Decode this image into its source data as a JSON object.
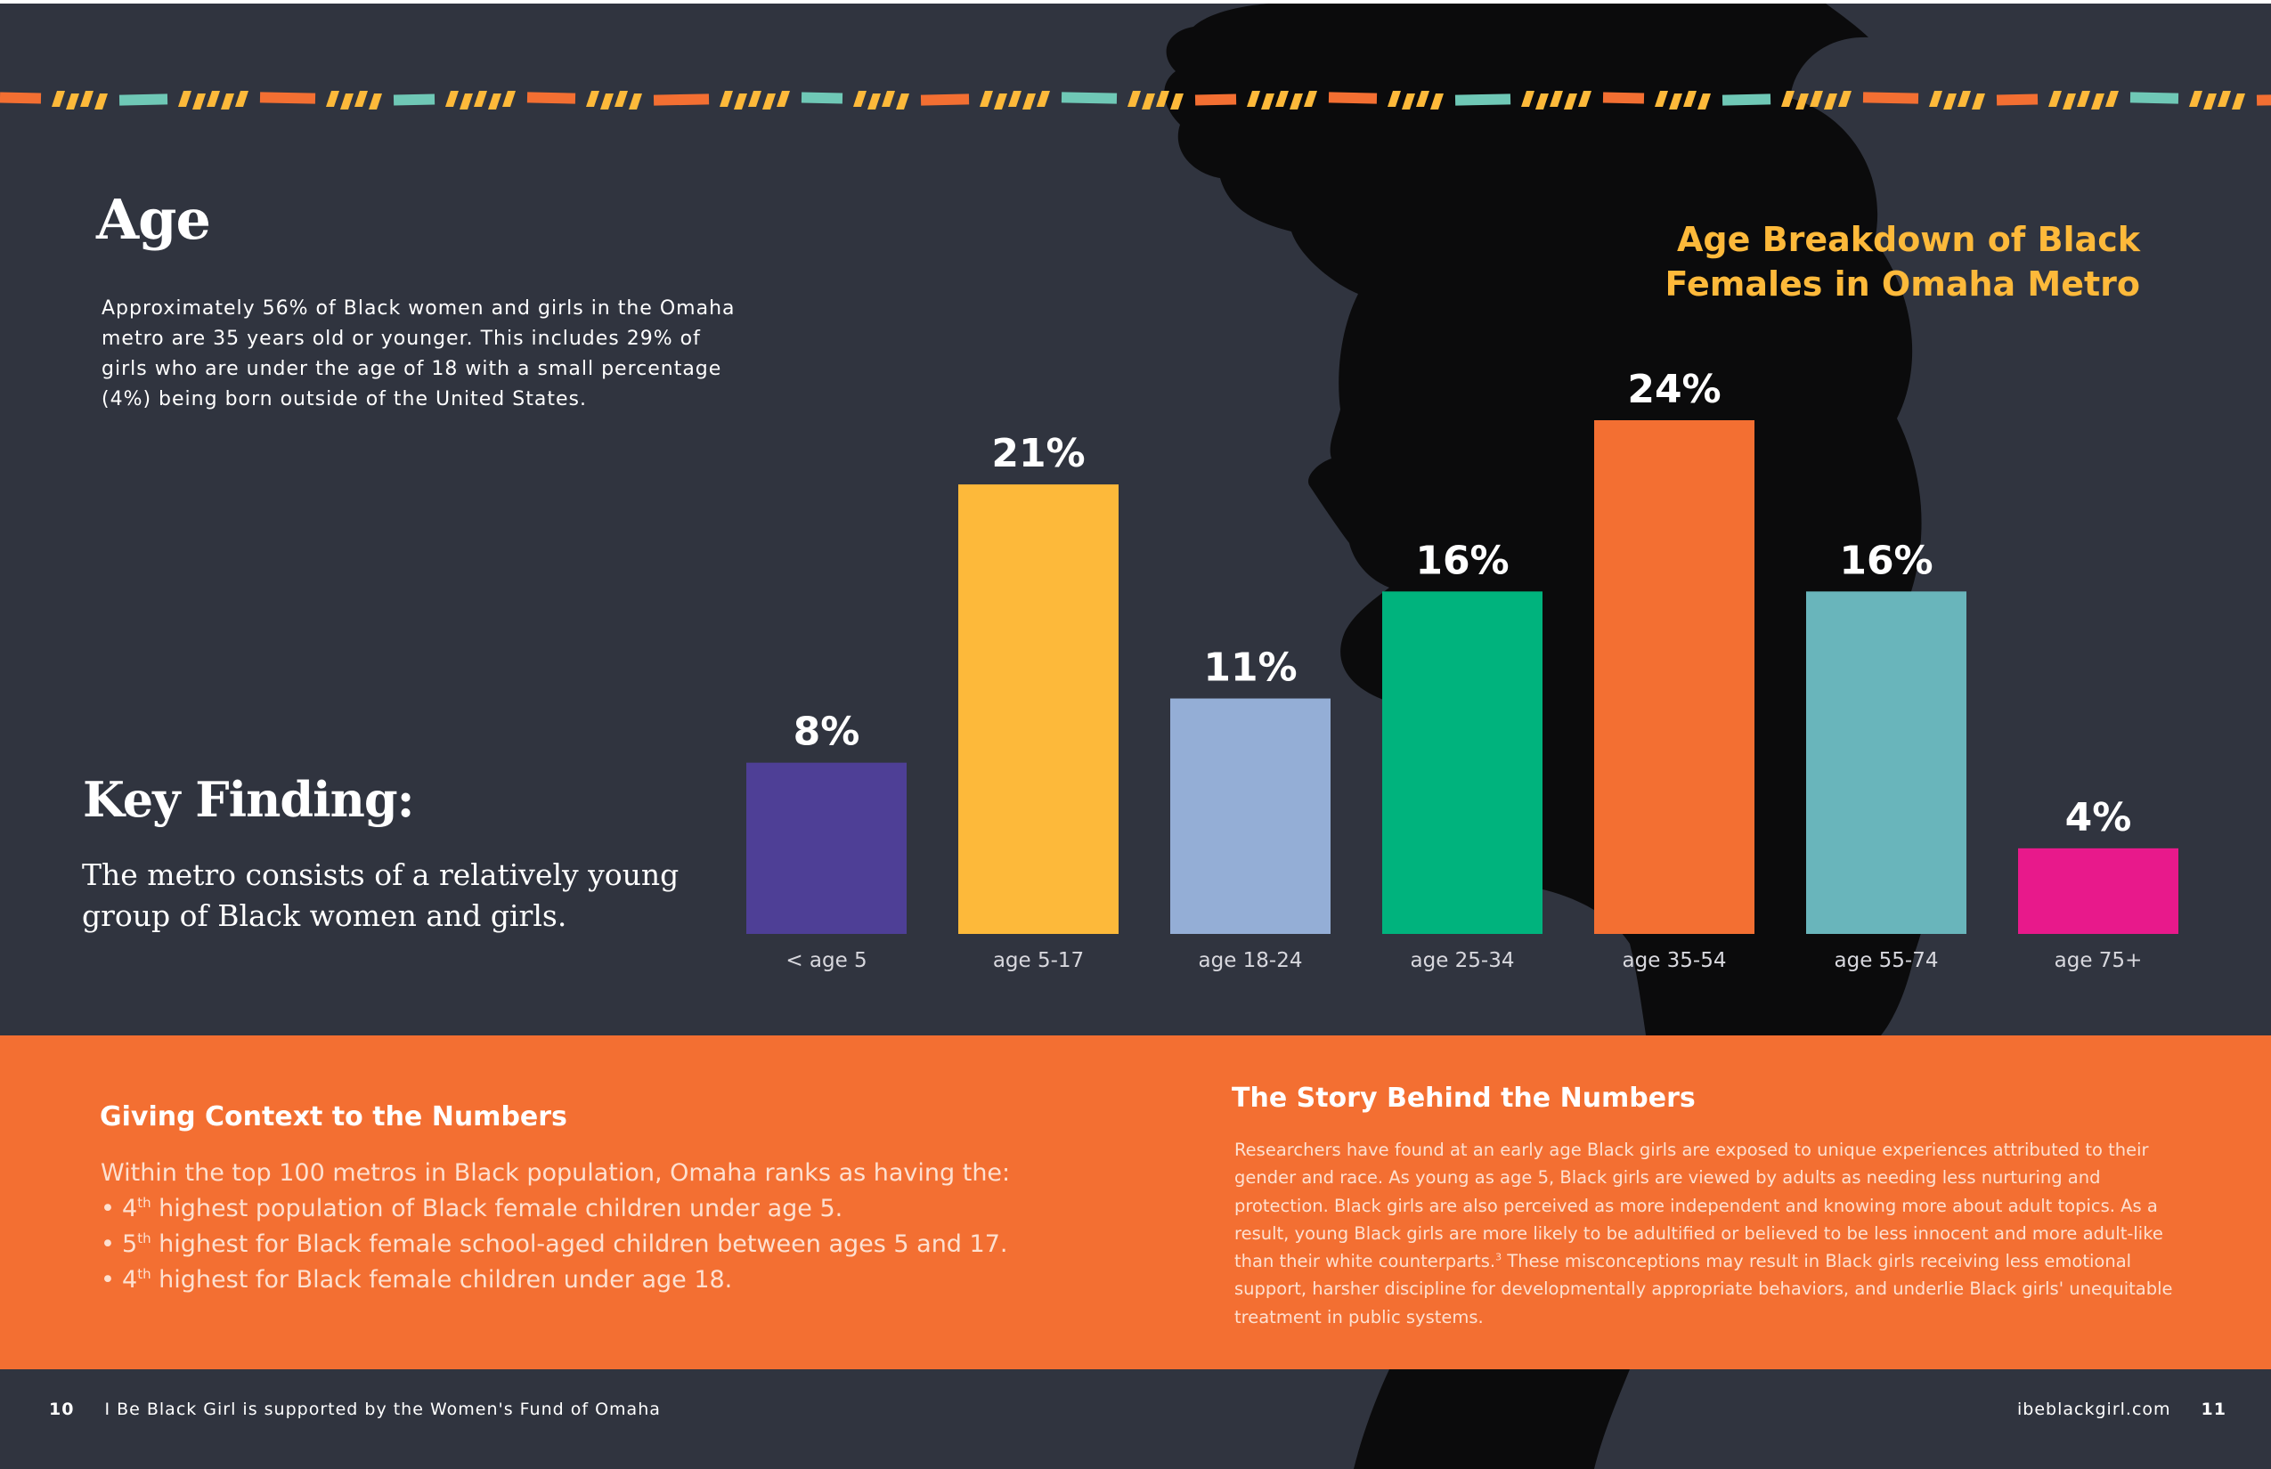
{
  "left_page": {
    "age_section": {
      "heading": "Age",
      "paragraph": "Approximately 56% of Black women and girls in the Omaha metro are 35 years old or younger. This includes 29% of girls who are under the age of 18 with a small percentage (4%) being born outside of the United States."
    },
    "key_finding": {
      "heading": "Key Finding:",
      "text": "The metro consists of a relatively young group of Black women and girls."
    }
  },
  "chart_data": {
    "type": "bar",
    "title": "Age Breakdown of Black Females in Omaha Metro",
    "categories": [
      "< age 5",
      "age 5-17",
      "age 18-24",
      "age 25-34",
      "age 35-54",
      "age 55-74",
      "age 75+"
    ],
    "values": [
      8,
      21,
      11,
      16,
      24,
      16,
      4
    ],
    "value_labels": [
      "8%",
      "21%",
      "11%",
      "16%",
      "24%",
      "16%",
      "4%"
    ],
    "bar_colors": [
      "#4e3f96",
      "#fdb93a",
      "#94aed6",
      "#00b37d",
      "#f36f32",
      "#69b5bb",
      "#e8198b"
    ],
    "unit": "%",
    "ylim": [
      0,
      24
    ],
    "title_color": "#fdb93a",
    "grid": false,
    "legend": "none"
  },
  "context": {
    "heading": "Giving Context to the Numbers",
    "intro": "Within the top 100 metros in Black population, Omaha ranks as having the:",
    "items": [
      {
        "ordinal": "4",
        "suffix": "th",
        "text": " highest population of Black female children under age 5."
      },
      {
        "ordinal": "5",
        "suffix": "th",
        "text": " highest for Black female school-aged children between ages 5 and 17."
      },
      {
        "ordinal": "4",
        "suffix": "th",
        "text": " highest for Black female children under age 18."
      }
    ]
  },
  "story": {
    "heading": "The Story Behind the Numbers",
    "paragraph_part1": "Researchers have found at an early age Black girls are exposed to unique experiences attributed to their gender and race. As young as age 5, Black girls are viewed by adults as needing less nurturing and protection. Black girls are also perceived as more independent and knowing more about adult topics. As a result, young Black girls are more likely to be adultified or believed to be less innocent and more adult-like than their white counterparts.",
    "footnote_ref": "3",
    "paragraph_part2": " These misconceptions may result in Black girls receiving less emotional support, harsher discipline for developmentally appropriate behaviors, and underlie Black girls' unequitable treatment in public systems."
  },
  "footer": {
    "left_page_number": "10",
    "left_text": "I Be Black Girl is supported by the Women's Fund of Omaha",
    "right_text": "ibeblackgirl.com",
    "right_page_number": "11"
  },
  "colors": {
    "background": "#30343f",
    "band": "#f36f32",
    "silhouette": "#0b0b0c",
    "decor_orange": "#f36f32",
    "decor_teal": "#6fc8b6",
    "decor_yellow": "#fdb93a"
  }
}
